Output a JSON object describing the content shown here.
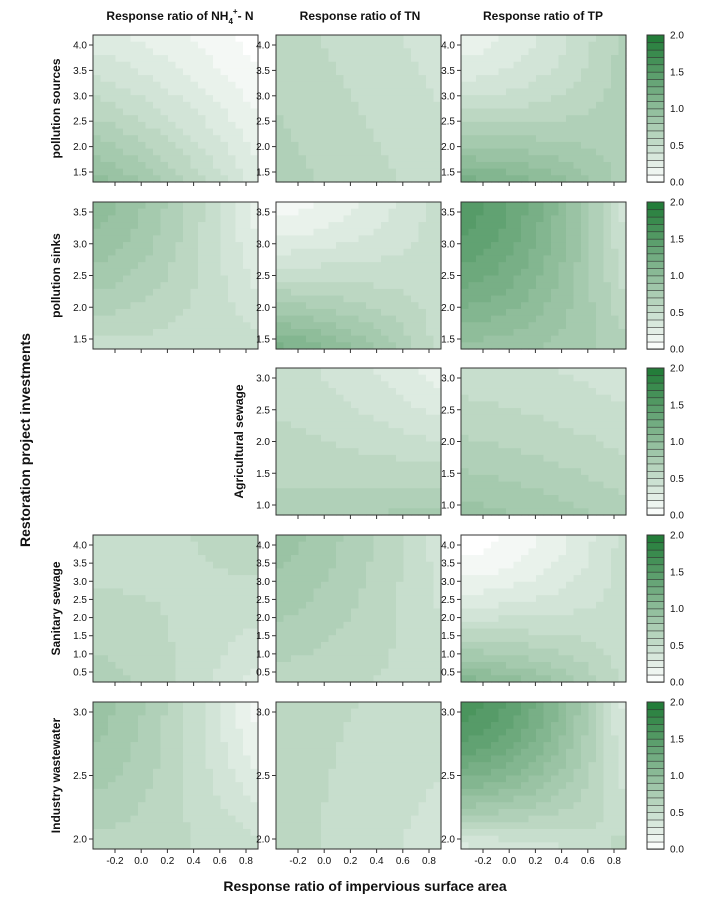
{
  "chart_data": {
    "type": "heatmap",
    "xlabel": "Response ratio of impervious surface area",
    "ylabel": "Restoration project investments",
    "columns": [
      {
        "title_main": "Response ratio of NH",
        "title_sub": "4",
        "title_sup": "+",
        "title_end": "- N"
      },
      {
        "title_main": "Response ratio of TN"
      },
      {
        "title_main": "Response ratio of TP"
      }
    ],
    "x_ticks": [
      "-0.2",
      "0.0",
      "0.2",
      "0.4",
      "0.6",
      "0.8"
    ],
    "colorbar": {
      "min": 0.0,
      "max": 2.0,
      "ticks": [
        "0.0",
        "0.5",
        "1.0",
        "1.5",
        "2.0"
      ],
      "low_color": "#ffffff",
      "high_color": "#1e7a35"
    },
    "rows": [
      {
        "label": "pollution sources",
        "y_ticks": [
          "1.5",
          "2.0",
          "2.5",
          "3.0",
          "3.5",
          "4.0"
        ],
        "panels": [
          {
            "corners": [
              0.3,
              0.0,
              1.0,
              0.3
            ],
            "shape": 1.2
          },
          {
            "corners": [
              0.6,
              0.4,
              0.7,
              0.5
            ],
            "shape": 1.0
          },
          {
            "corners": [
              0.2,
              0.7,
              1.2,
              0.7
            ],
            "shape": 1.6
          }
        ]
      },
      {
        "label": "pollution sinks",
        "y_ticks": [
          "1.5",
          "2.0",
          "2.5",
          "3.0",
          "3.5"
        ],
        "panels": [
          {
            "corners": [
              1.0,
              0.2,
              0.5,
              0.5
            ],
            "shape": 1.4
          },
          {
            "corners": [
              0.1,
              0.5,
              1.2,
              0.5
            ],
            "shape": 1.4
          },
          {
            "corners": [
              1.5,
              0.4,
              0.9,
              0.7
            ],
            "shape": 1.6
          }
        ]
      },
      {
        "label": "Agricultural sewage",
        "y_ticks": [
          "1.0",
          "1.5",
          "2.0",
          "2.5",
          "3.0"
        ],
        "panels": [
          null,
          {
            "corners": [
              0.5,
              0.2,
              0.7,
              0.8
            ],
            "shape": 1.3
          },
          {
            "corners": [
              0.5,
              0.4,
              0.9,
              0.7
            ],
            "shape": 1.3
          }
        ]
      },
      {
        "label": "Sanitary sewage",
        "y_ticks": [
          "0.5",
          "1.0",
          "1.5",
          "2.0",
          "2.5",
          "3.0",
          "3.5",
          "4.0"
        ],
        "panels": [
          {
            "corners": [
              0.5,
              0.6,
              0.7,
              0.3
            ],
            "shape": 1.4
          },
          {
            "corners": [
              0.9,
              0.4,
              0.6,
              0.5
            ],
            "shape": 1.3
          },
          {
            "corners": [
              0.0,
              0.5,
              1.1,
              0.5
            ],
            "shape": 1.6
          }
        ]
      },
      {
        "label": "Industry wastewater",
        "y_ticks": [
          "2.0",
          "2.5",
          "3.0"
        ],
        "panels": [
          {
            "corners": [
              0.9,
              0.1,
              0.6,
              0.5
            ],
            "shape": 1.4
          },
          {
            "corners": [
              0.6,
              0.5,
              0.6,
              0.4
            ],
            "shape": 1.0
          },
          {
            "corners": [
              1.6,
              0.3,
              0.3,
              0.6
            ],
            "shape": 1.6
          }
        ]
      }
    ]
  }
}
